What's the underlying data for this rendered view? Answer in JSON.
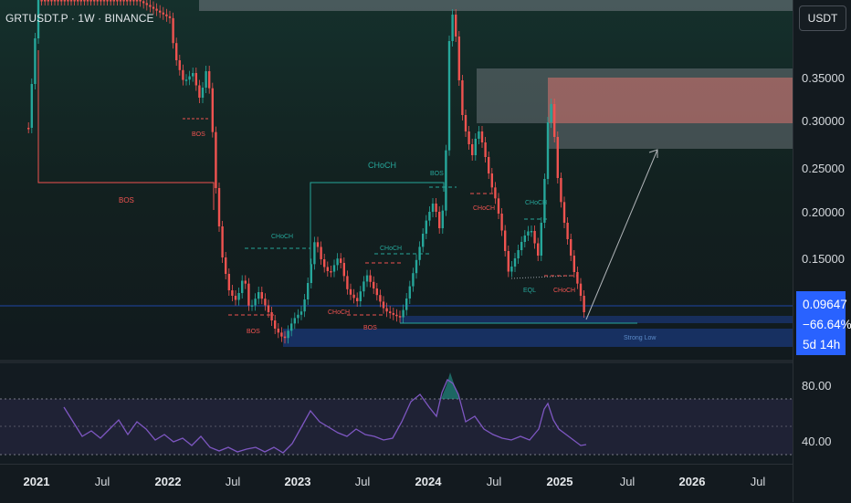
{
  "header": {
    "symbol_title": "GRTUSDT.P · 1W · BINANCE"
  },
  "price_axis": {
    "currency": "USDT",
    "ticks": [
      "0.35000",
      "0.30000",
      "0.25000",
      "0.20000",
      "0.15000"
    ]
  },
  "current_price": {
    "price": "0.09647",
    "change": "−66.64%",
    "countdown": "5d 14h"
  },
  "rsi_axis": {
    "ticks": [
      "80.00",
      "40.00"
    ]
  },
  "time_axis": {
    "ticks": [
      {
        "label": "2021",
        "year": true
      },
      {
        "label": "Jul",
        "year": false
      },
      {
        "label": "2022",
        "year": true
      },
      {
        "label": "Jul",
        "year": false
      },
      {
        "label": "2023",
        "year": true
      },
      {
        "label": "Jul",
        "year": false
      },
      {
        "label": "2024",
        "year": true
      },
      {
        "label": "Jul",
        "year": false
      },
      {
        "label": "2025",
        "year": true
      },
      {
        "label": "Jul",
        "year": false
      },
      {
        "label": "2026",
        "year": true
      },
      {
        "label": "Jul",
        "year": false
      }
    ]
  },
  "annotations": {
    "bos": "BOS",
    "choch": "CHoCH",
    "eql": "EQL",
    "strong_low": "Strong Low"
  },
  "colors": {
    "bull": "#26a69a",
    "bear": "#ef5350",
    "rsi_line": "#7e57c2",
    "price_line": "#2962ff",
    "zone_gray": "#8a8f96",
    "zone_red": "#d9726e",
    "zone_blue": "#2962ff"
  }
}
